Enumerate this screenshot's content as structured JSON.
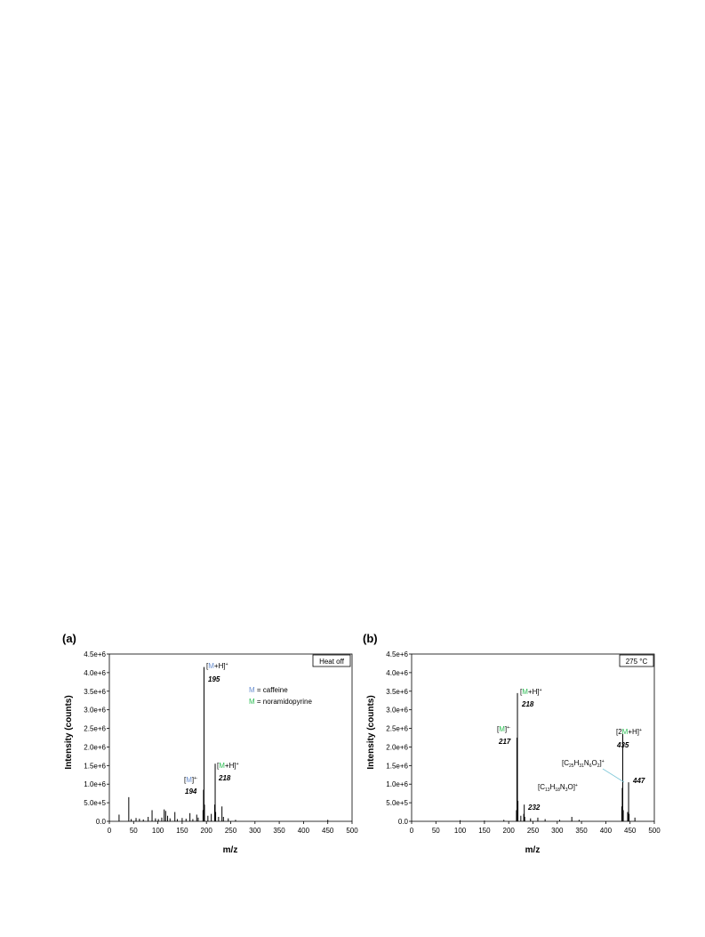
{
  "figure": {
    "panels": [
      {
        "label": "(a)",
        "condition": "Heat off",
        "legend": [
          {
            "symbol": "M",
            "text": " = caffeine",
            "color": "#6a8fd0"
          },
          {
            "symbol": "M",
            "text": " = noramidopyrine",
            "color": "#2ebd55"
          }
        ]
      },
      {
        "label": "(b)",
        "condition": "275 °C",
        "legend": []
      }
    ]
  },
  "colors": {
    "caffeine": "#6a8fd0",
    "noramidopyrine": "#2ebd55",
    "spectrum": "#000000",
    "leader_line": "#7ec8d8"
  },
  "chart_data": [
    {
      "type": "bar",
      "title": "",
      "xlabel": "m/z",
      "ylabel": "Intensity (counts)",
      "xlim": [
        0,
        500
      ],
      "ylim": [
        0,
        4500000
      ],
      "xticks": [
        "0",
        "50",
        "100",
        "150",
        "200",
        "250",
        "300",
        "350",
        "400",
        "450",
        "500"
      ],
      "yticks": [
        "0.0",
        "5.0e+5",
        "1.0e+6",
        "1.5e+6",
        "2.0e+6",
        "2.5e+6",
        "3.0e+6",
        "3.5e+6",
        "4.0e+6",
        "4.5e+6"
      ],
      "grid": false,
      "legend_position": "top-right",
      "peaks": [
        {
          "mz": 20,
          "intensity": 180000
        },
        {
          "mz": 40,
          "intensity": 650000
        },
        {
          "mz": 45,
          "intensity": 60000
        },
        {
          "mz": 55,
          "intensity": 90000
        },
        {
          "mz": 62,
          "intensity": 70000
        },
        {
          "mz": 70,
          "intensity": 50000
        },
        {
          "mz": 80,
          "intensity": 120000
        },
        {
          "mz": 88,
          "intensity": 300000
        },
        {
          "mz": 95,
          "intensity": 80000
        },
        {
          "mz": 101,
          "intensity": 60000
        },
        {
          "mz": 108,
          "intensity": 100000
        },
        {
          "mz": 113,
          "intensity": 320000
        },
        {
          "mz": 116,
          "intensity": 280000
        },
        {
          "mz": 120,
          "intensity": 150000
        },
        {
          "mz": 125,
          "intensity": 80000
        },
        {
          "mz": 135,
          "intensity": 250000
        },
        {
          "mz": 140,
          "intensity": 60000
        },
        {
          "mz": 150,
          "intensity": 90000
        },
        {
          "mz": 158,
          "intensity": 70000
        },
        {
          "mz": 166,
          "intensity": 220000
        },
        {
          "mz": 172,
          "intensity": 60000
        },
        {
          "mz": 180,
          "intensity": 180000
        },
        {
          "mz": 183,
          "intensity": 100000
        },
        {
          "mz": 193,
          "intensity": 300000
        },
        {
          "mz": 194,
          "intensity": 850000
        },
        {
          "mz": 195,
          "intensity": 4150000
        },
        {
          "mz": 196,
          "intensity": 450000
        },
        {
          "mz": 203,
          "intensity": 150000
        },
        {
          "mz": 210,
          "intensity": 200000
        },
        {
          "mz": 217,
          "intensity": 450000
        },
        {
          "mz": 218,
          "intensity": 1550000
        },
        {
          "mz": 219,
          "intensity": 250000
        },
        {
          "mz": 225,
          "intensity": 120000
        },
        {
          "mz": 232,
          "intensity": 400000
        },
        {
          "mz": 235,
          "intensity": 120000
        },
        {
          "mz": 245,
          "intensity": 80000
        },
        {
          "mz": 260,
          "intensity": 40000
        },
        {
          "mz": 450,
          "intensity": 40000
        }
      ],
      "annotations": [
        {
          "ion_pre": "[",
          "ion_m": "M",
          "ion_post": "+H]",
          "ion_sup": "+",
          "mz_label": "195",
          "color": "#6a8fd0",
          "mz": 195
        },
        {
          "ion_pre": "[",
          "ion_m": "M",
          "ion_post": "]",
          "ion_sup": "+·",
          "mz_label": "194",
          "color": "#6a8fd0",
          "mz": 194
        },
        {
          "ion_pre": "[",
          "ion_m": "M",
          "ion_post": "+H]",
          "ion_sup": "+",
          "mz_label": "218",
          "color": "#2ebd55",
          "mz": 218
        }
      ]
    },
    {
      "type": "bar",
      "title": "",
      "xlabel": "m/z",
      "ylabel": "Intensity (counts)",
      "xlim": [
        0,
        500
      ],
      "ylim": [
        0,
        4500000
      ],
      "xticks": [
        "0",
        "50",
        "100",
        "150",
        "200",
        "250",
        "300",
        "350",
        "400",
        "450",
        "500"
      ],
      "yticks": [
        "0.0",
        "5.0e+5",
        "1.0e+6",
        "1.5e+6",
        "2.0e+6",
        "2.5e+6",
        "3.0e+6",
        "3.5e+6",
        "4.0e+6",
        "4.5e+6"
      ],
      "grid": false,
      "legend_position": "top-right",
      "peaks": [
        {
          "mz": 100,
          "intensity": 30000
        },
        {
          "mz": 150,
          "intensity": 20000
        },
        {
          "mz": 190,
          "intensity": 40000
        },
        {
          "mz": 216,
          "intensity": 300000
        },
        {
          "mz": 217,
          "intensity": 2250000
        },
        {
          "mz": 218,
          "intensity": 3450000
        },
        {
          "mz": 219,
          "intensity": 550000
        },
        {
          "mz": 225,
          "intensity": 150000
        },
        {
          "mz": 231,
          "intensity": 200000
        },
        {
          "mz": 232,
          "intensity": 450000
        },
        {
          "mz": 233,
          "intensity": 120000
        },
        {
          "mz": 245,
          "intensity": 80000
        },
        {
          "mz": 260,
          "intensity": 100000
        },
        {
          "mz": 275,
          "intensity": 60000
        },
        {
          "mz": 305,
          "intensity": 40000
        },
        {
          "mz": 330,
          "intensity": 120000
        },
        {
          "mz": 345,
          "intensity": 40000
        },
        {
          "mz": 433,
          "intensity": 400000
        },
        {
          "mz": 434,
          "intensity": 900000
        },
        {
          "mz": 435,
          "intensity": 2350000
        },
        {
          "mz": 436,
          "intensity": 300000
        },
        {
          "mz": 445,
          "intensity": 250000
        },
        {
          "mz": 447,
          "intensity": 1050000
        },
        {
          "mz": 448,
          "intensity": 200000
        },
        {
          "mz": 460,
          "intensity": 100000
        }
      ],
      "annotations": [
        {
          "ion_pre": "[",
          "ion_m": "M",
          "ion_post": "+H]",
          "ion_sup": "+",
          "mz_label": "218",
          "color": "#2ebd55",
          "mz": 218
        },
        {
          "ion_pre": "[",
          "ion_m": "M",
          "ion_post": "]",
          "ion_sup": "+·",
          "mz_label": "217",
          "color": "#2ebd55",
          "mz": 217
        },
        {
          "ion_pre": "[C",
          "ion_sub1": "13",
          "ion_mid1": "H",
          "ion_sub2": "18",
          "ion_mid2": "N",
          "ion_sub3": "3",
          "ion_post": "O]",
          "ion_sup": "+",
          "mz_label": "232",
          "mz": 232
        },
        {
          "ion_pre": "[2",
          "ion_m": "M",
          "ion_post": "+H]",
          "ion_sup": "+",
          "mz_label": "435",
          "color": "#2ebd55",
          "mz": 435
        },
        {
          "ion_pre": "[C",
          "ion_sub1": "25",
          "ion_mid1": "H",
          "ion_sub2": "31",
          "ion_mid2": "N",
          "ion_sub3": "6",
          "ion_post": "O",
          "ion_sub4": "2",
          "ion_post2": "]",
          "ion_sup": "+",
          "mz_label": "447",
          "mz": 447
        }
      ]
    }
  ]
}
